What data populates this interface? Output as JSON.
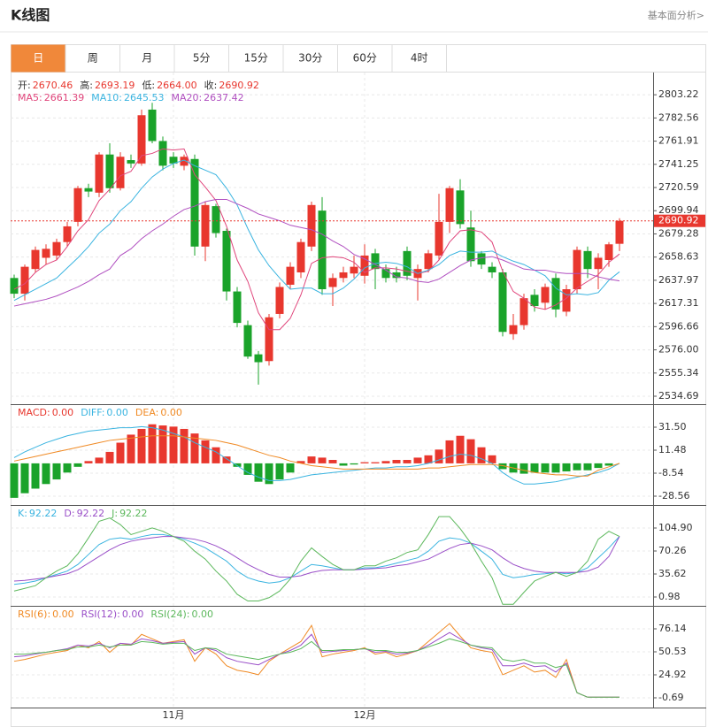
{
  "header": {
    "title": "K线图",
    "link": "基本面分析>"
  },
  "tabs": [
    "日",
    "周",
    "月",
    "5分",
    "15分",
    "30分",
    "60分",
    "4时"
  ],
  "active_tab": 0,
  "chart_data": [
    {
      "type": "candlestick",
      "up_color": "#e8372e",
      "down_color": "#1aa32a",
      "last_price_line": true,
      "info": [
        {
          "name": "开:",
          "value": "2670.46"
        },
        {
          "name": "高:",
          "value": "2693.19"
        },
        {
          "name": "低:",
          "value": "2664.00"
        },
        {
          "name": "收:",
          "value": "2690.92"
        }
      ],
      "categories": [
        null,
        null,
        null,
        null,
        null,
        null,
        null,
        null,
        null,
        null,
        null,
        null,
        null,
        null,
        null,
        "11月",
        null,
        null,
        null,
        null,
        null,
        null,
        null,
        null,
        null,
        null,
        null,
        null,
        null,
        null,
        null,
        null,
        null,
        "12月",
        null,
        null,
        null,
        null,
        null,
        null,
        null,
        null,
        null,
        null,
        null,
        null,
        null,
        null,
        null,
        null,
        null,
        null,
        null,
        null,
        null,
        null,
        null,
        null
      ],
      "open": [
        2640,
        2626,
        2648,
        2658,
        2660,
        2672,
        2690,
        2720,
        2716,
        2750,
        2720,
        2745,
        2742,
        2790,
        2762,
        2748,
        2740,
        2746,
        2668,
        2704,
        2682,
        2628,
        2598,
        2572,
        2566,
        2608,
        2634,
        2645,
        2668,
        2700,
        2632,
        2640,
        2644,
        2642,
        2662,
        2648,
        2645,
        2664,
        2640,
        2648,
        2660,
        2690,
        2718,
        2685,
        2662,
        2650,
        2645,
        2590,
        2598,
        2625,
        2618,
        2640,
        2610,
        2630,
        2664,
        2648,
        2656,
        2670.46
      ],
      "high": [
        2643,
        2652,
        2668,
        2670,
        2675,
        2690,
        2722,
        2724,
        2752,
        2760,
        2752,
        2750,
        2790,
        2796,
        2766,
        2752,
        2750,
        2750,
        2708,
        2706,
        2684,
        2632,
        2602,
        2575,
        2608,
        2636,
        2654,
        2675,
        2708,
        2712,
        2644,
        2650,
        2660,
        2670,
        2666,
        2652,
        2650,
        2668,
        2652,
        2665,
        2715,
        2722,
        2728,
        2700,
        2664,
        2654,
        2648,
        2608,
        2626,
        2630,
        2635,
        2644,
        2634,
        2668,
        2668,
        2662,
        2672,
        2693.19
      ],
      "low": [
        2622,
        2620,
        2645,
        2652,
        2656,
        2668,
        2686,
        2712,
        2712,
        2716,
        2718,
        2738,
        2740,
        2760,
        2736,
        2738,
        2736,
        2660,
        2655,
        2676,
        2620,
        2596,
        2568,
        2545,
        2562,
        2604,
        2630,
        2640,
        2664,
        2625,
        2615,
        2636,
        2640,
        2635,
        2630,
        2636,
        2636,
        2638,
        2620,
        2645,
        2656,
        2680,
        2684,
        2650,
        2648,
        2640,
        2588,
        2585,
        2594,
        2610,
        2612,
        2605,
        2606,
        2626,
        2640,
        2630,
        2650,
        2664
      ],
      "close": [
        2626,
        2650,
        2665,
        2666,
        2672,
        2686,
        2720,
        2717,
        2750,
        2720,
        2748,
        2742,
        2785,
        2762,
        2740,
        2742,
        2748,
        2668,
        2705,
        2680,
        2628,
        2600,
        2570,
        2565,
        2605,
        2632,
        2650,
        2672,
        2705,
        2630,
        2640,
        2645,
        2650,
        2660,
        2648,
        2640,
        2640,
        2642,
        2648,
        2662,
        2690,
        2720,
        2688,
        2655,
        2652,
        2645,
        2592,
        2598,
        2622,
        2615,
        2632,
        2612,
        2630,
        2665,
        2648,
        2658,
        2670,
        2690.92
      ],
      "series": [
        {
          "name": "MA5:",
          "label": "2661.39",
          "color": "#e0457b",
          "values": [
            2630,
            2635,
            2645,
            2652,
            2656,
            2668,
            2682,
            2692,
            2709,
            2719,
            2731,
            2735,
            2749,
            2751,
            2755,
            2754,
            2755,
            2732,
            2721,
            2709,
            2686,
            2656,
            2637,
            2609,
            2594,
            2594,
            2604,
            2625,
            2653,
            2658,
            2659,
            2658,
            2654,
            2645,
            2649,
            2649,
            2648,
            2646,
            2644,
            2646,
            2656,
            2672,
            2682,
            2683,
            2681,
            2672,
            2646,
            2628,
            2622,
            2614,
            2612,
            2616,
            2622,
            2631,
            2637,
            2643,
            2654,
            2661.39
          ]
        },
        {
          "name": "MA10:",
          "label": "2645.53",
          "color": "#3ab4e0",
          "values": [
            2620,
            2625,
            2630,
            2635,
            2640,
            2649,
            2658,
            2668,
            2680,
            2688,
            2700,
            2708,
            2720,
            2730,
            2737,
            2742,
            2745,
            2740,
            2736,
            2732,
            2720,
            2705,
            2684,
            2665,
            2651,
            2640,
            2630,
            2631,
            2631,
            2626,
            2626,
            2631,
            2639,
            2649,
            2653,
            2654,
            2653,
            2650,
            2644,
            2647,
            2652,
            2660,
            2664,
            2663,
            2663,
            2664,
            2659,
            2655,
            2652,
            2647,
            2642,
            2631,
            2625,
            2626,
            2625,
            2627,
            2638,
            2645.53
          ]
        },
        {
          "name": "MA20:",
          "label": "2637.42",
          "color": "#b04fc0",
          "values": [
            2615,
            2617,
            2619,
            2621,
            2624,
            2628,
            2632,
            2637,
            2643,
            2648,
            2660,
            2666,
            2675,
            2682,
            2688,
            2695,
            2701,
            2704,
            2708,
            2710,
            2710,
            2706,
            2702,
            2697,
            2694,
            2691,
            2687,
            2685,
            2683,
            2679,
            2673,
            2668,
            2661,
            2657,
            2652,
            2647,
            2641,
            2640,
            2637,
            2636,
            2639,
            2645,
            2651,
            2656,
            2658,
            2659,
            2656,
            2652,
            2648,
            2647,
            2647,
            2645,
            2644,
            2644,
            2644,
            2641,
            2639,
            2637.42
          ]
        }
      ],
      "ylim": [
        2527.6,
        2818.3
      ],
      "yticks": [
        2803.22,
        2782.56,
        2761.91,
        2741.25,
        2720.59,
        2699.94,
        2679.28,
        2658.63,
        2637.97,
        2617.31,
        2596.66,
        {
          "value": 2576,
          "label": "2576.00"
        },
        2555.34,
        2534.69
      ],
      "grid": true
    },
    {
      "type": "macd",
      "up_color": "#e8372e",
      "down_color": "#1aa32a",
      "bars": {
        "name": "MACD:",
        "label": "0.00",
        "color": "#e8372e",
        "values": [
          -30,
          -26,
          -22,
          -18,
          -14,
          -8,
          -3,
          2,
          5,
          10,
          18,
          25,
          30,
          34,
          33,
          32,
          30,
          26,
          20,
          14,
          6,
          -3,
          -10,
          -16,
          -18,
          -14,
          -8,
          2,
          6,
          5,
          3,
          -2,
          -1,
          1,
          1,
          2,
          3,
          3,
          5,
          7,
          12,
          20,
          24,
          21,
          14,
          7,
          -5,
          -8,
          -9,
          -8,
          -8,
          -8,
          -7,
          -6,
          -6,
          -4,
          -2,
          0
        ]
      },
      "series": [
        {
          "name": "DIFF:",
          "label": "0.00",
          "color": "#3ab4e0",
          "values": [
            5,
            10,
            14,
            18,
            21,
            24,
            26,
            28,
            29,
            30,
            31,
            31,
            32,
            31,
            29,
            26,
            23,
            18,
            14,
            10,
            4,
            -2,
            -8,
            -12,
            -15,
            -15,
            -14,
            -12,
            -10,
            -9,
            -8,
            -7,
            -6,
            -5,
            -4,
            -4,
            -3,
            -3,
            -2,
            0,
            3,
            6,
            8,
            7,
            4,
            0,
            -8,
            -14,
            -18,
            -18,
            -17,
            -16,
            -14,
            -12,
            -10,
            -8,
            -5,
            0
          ]
        },
        {
          "name": "DEA:",
          "label": "0.00",
          "color": "#f08a24",
          "values": [
            2,
            4,
            6,
            8,
            10,
            12,
            14,
            16,
            18,
            20,
            21,
            22,
            23,
            24,
            24,
            24,
            23,
            22,
            21,
            20,
            18,
            16,
            13,
            10,
            7,
            5,
            2,
            0,
            -2,
            -3,
            -4,
            -5,
            -5,
            -5,
            -5,
            -5,
            -5,
            -5,
            -5,
            -4,
            -4,
            -3,
            -2,
            -1,
            -1,
            -1,
            -2,
            -4,
            -6,
            -8,
            -9,
            -10,
            -10,
            -11,
            -11,
            -6,
            -3,
            0
          ]
        }
      ],
      "ylim": [
        -36.26,
        50.75
      ],
      "yticks": [
        {
          "value": 31.5,
          "label": "31.50"
        },
        11.48,
        -8.54,
        -28.56
      ],
      "grid": true
    },
    {
      "type": "line",
      "series": [
        {
          "name": "K:",
          "label": "92.22",
          "color": "#3ab4e0",
          "values": [
            20,
            22,
            25,
            30,
            35,
            40,
            50,
            65,
            80,
            88,
            90,
            88,
            92,
            95,
            95,
            92,
            88,
            82,
            75,
            65,
            55,
            40,
            30,
            25,
            22,
            24,
            30,
            40,
            50,
            48,
            45,
            42,
            42,
            45,
            45,
            48,
            52,
            56,
            60,
            70,
            85,
            90,
            88,
            82,
            70,
            58,
            35,
            30,
            32,
            35,
            36,
            38,
            36,
            38,
            45,
            60,
            75,
            92.22
          ]
        },
        {
          "name": "D:",
          "label": "92.22",
          "color": "#9a4fc8",
          "values": [
            25,
            26,
            28,
            30,
            33,
            36,
            42,
            52,
            62,
            72,
            80,
            85,
            88,
            90,
            92,
            92,
            90,
            88,
            84,
            78,
            70,
            60,
            50,
            42,
            35,
            31,
            31,
            33,
            38,
            41,
            42,
            42,
            42,
            43,
            44,
            45,
            48,
            50,
            54,
            58,
            66,
            74,
            80,
            82,
            78,
            72,
            60,
            50,
            44,
            40,
            38,
            38,
            38,
            38,
            40,
            46,
            62,
            92.22
          ]
        },
        {
          "name": "J:",
          "label": "92.22",
          "color": "#5cb85c",
          "values": [
            10,
            14,
            18,
            30,
            40,
            48,
            66,
            90,
            115,
            120,
            110,
            95,
            100,
            105,
            100,
            92,
            85,
            70,
            58,
            40,
            25,
            5,
            -5,
            -5,
            0,
            10,
            28,
            55,
            75,
            62,
            50,
            42,
            42,
            48,
            48,
            55,
            60,
            68,
            72,
            95,
            122,
            122,
            104,
            82,
            55,
            30,
            -10,
            -10,
            8,
            25,
            32,
            38,
            32,
            38,
            55,
            88,
            100,
            92.22
          ]
        }
      ],
      "ylim": [
        -12.34,
        138.2
      ],
      "yticks": [
        {
          "value": 104.9,
          "label": "104.90"
        },
        70.26,
        35.62,
        0.98
      ],
      "grid": true
    },
    {
      "type": "line",
      "series": [
        {
          "name": "RSI(6):",
          "label": "0.00",
          "color": "#f08a24",
          "values": [
            40,
            42,
            45,
            48,
            50,
            52,
            58,
            55,
            62,
            50,
            60,
            58,
            70,
            65,
            60,
            62,
            64,
            40,
            55,
            48,
            35,
            30,
            28,
            25,
            40,
            48,
            55,
            62,
            80,
            45,
            48,
            50,
            52,
            55,
            48,
            50,
            45,
            48,
            52,
            62,
            72,
            82,
            68,
            55,
            52,
            50,
            25,
            30,
            35,
            28,
            30,
            22,
            42,
            5,
            0,
            0,
            0,
            0
          ]
        },
        {
          "name": "RSI(12):",
          "label": "0.00",
          "color": "#9a4fc8",
          "values": [
            45,
            46,
            48,
            50,
            52,
            54,
            58,
            57,
            60,
            55,
            60,
            59,
            65,
            63,
            60,
            61,
            62,
            48,
            55,
            52,
            44,
            40,
            38,
            36,
            42,
            48,
            52,
            58,
            70,
            50,
            51,
            52,
            53,
            54,
            50,
            51,
            48,
            49,
            52,
            58,
            65,
            72,
            65,
            58,
            55,
            53,
            35,
            35,
            38,
            34,
            35,
            28,
            38,
            5,
            0,
            0,
            0,
            0
          ]
        },
        {
          "name": "RSI(24):",
          "label": "0.00",
          "color": "#5cb85c",
          "values": [
            48,
            48,
            49,
            50,
            52,
            53,
            56,
            56,
            58,
            56,
            58,
            58,
            62,
            61,
            59,
            60,
            60,
            52,
            55,
            54,
            48,
            46,
            44,
            42,
            45,
            48,
            50,
            54,
            62,
            52,
            52,
            53,
            53,
            54,
            52,
            52,
            50,
            50,
            52,
            56,
            60,
            65,
            62,
            58,
            56,
            55,
            42,
            40,
            42,
            38,
            38,
            33,
            36,
            5,
            0,
            0,
            0,
            0
          ]
        }
      ],
      "ylim": [
        -11.53,
        100.76
      ],
      "yticks": [
        76.14,
        50.53,
        24.92,
        -0.69
      ],
      "grid": true
    }
  ]
}
